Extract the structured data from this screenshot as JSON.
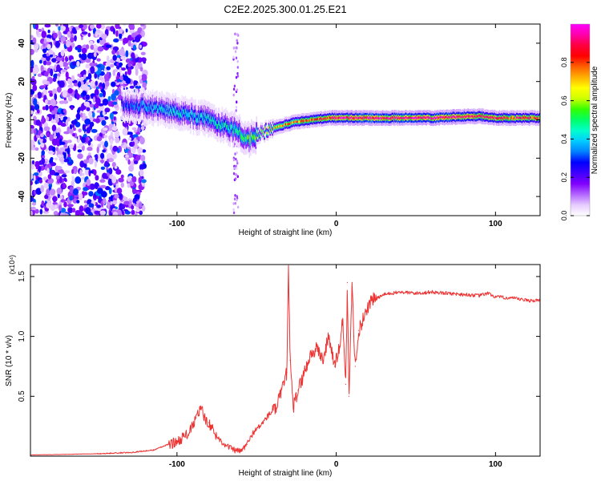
{
  "figure_title": "C2E2.2025.300.01.25.E21",
  "chart_data": [
    {
      "type": "heatmap",
      "title": "C2E2.2025.300.01.25.E21",
      "xlabel": "Height of straight line (km)",
      "ylabel": "Frequency (Hz)",
      "xlim": [
        -192,
        128
      ],
      "ylim": [
        -50,
        50
      ],
      "xticks": [
        -100,
        0,
        100
      ],
      "yticks": [
        -40,
        -20,
        0,
        20,
        40
      ],
      "colorbar": {
        "label": "Normalized spectral amplitude",
        "range": [
          0,
          1
        ],
        "ticks": [
          "0.0",
          "0.2",
          "0.4",
          "0.6",
          "0.8"
        ],
        "colors": [
          "#ffffff",
          "#e6ccff",
          "#b366ff",
          "#8000ff",
          "#4000ff",
          "#0000ff",
          "#0080ff",
          "#00ccff",
          "#00ffcc",
          "#00ff66",
          "#33ff00",
          "#ccff00",
          "#ffff00",
          "#ffb000",
          "#ff6000",
          "#ff0000",
          "#ff0040",
          "#ff00aa",
          "#ff00ff"
        ]
      },
      "ridge": {
        "x": [
          -135,
          -120,
          -100,
          -80,
          -65,
          -55,
          -45,
          -35,
          -25,
          -15,
          -5,
          0,
          20,
          60,
          90,
          100,
          128
        ],
        "y": [
          8,
          7,
          4,
          0,
          -5,
          -10,
          -6,
          -3,
          -1,
          0,
          1,
          1,
          1,
          1,
          2,
          1,
          1
        ],
        "amplitude": [
          0.3,
          0.4,
          0.45,
          0.45,
          0.5,
          0.55,
          0.65,
          0.75,
          0.8,
          0.85,
          0.9,
          0.95,
          1,
          1,
          0.95,
          0.9,
          0.85
        ]
      },
      "noise_region": {
        "x_range": [
          -192,
          -120
        ],
        "y_range": [
          -50,
          50
        ]
      }
    },
    {
      "type": "line",
      "xlabel": "Height of straight line (km)",
      "ylabel": "SNR (10 * v/v)",
      "multiplier": "(x10⁴)",
      "xlim": [
        -192,
        128
      ],
      "ylim": [
        0,
        1.6
      ],
      "xticks": [
        -100,
        0,
        100
      ],
      "yticks": [
        "0.5",
        "1.0",
        "1.5"
      ],
      "series": [
        {
          "name": "SNR",
          "color": "#ee3333",
          "x": [
            -192,
            -170,
            -150,
            -130,
            -115,
            -105,
            -100,
            -92,
            -88,
            -85,
            -82,
            -80,
            -76,
            -72,
            -68,
            -64,
            -60,
            -56,
            -52,
            -48,
            -45,
            -42,
            -38,
            -35,
            -33,
            -31,
            -30,
            -29,
            -27,
            -24,
            -20,
            -16,
            -12,
            -8,
            -5,
            -3,
            -1,
            2,
            4,
            6,
            7,
            8,
            10,
            11,
            12,
            14,
            16,
            18,
            20,
            22,
            26,
            30,
            35,
            40,
            50,
            60,
            70,
            80,
            90,
            95,
            100,
            110,
            120,
            128
          ],
          "y": [
            0.01,
            0.015,
            0.02,
            0.03,
            0.05,
            0.1,
            0.12,
            0.2,
            0.32,
            0.4,
            0.3,
            0.28,
            0.18,
            0.12,
            0.08,
            0.05,
            0.04,
            0.1,
            0.2,
            0.25,
            0.3,
            0.35,
            0.4,
            0.5,
            0.6,
            0.7,
            1.6,
            0.8,
            0.4,
            0.55,
            0.7,
            0.85,
            0.9,
            0.8,
            1.0,
            0.9,
            0.75,
            0.9,
            1.15,
            0.6,
            1.45,
            0.5,
            1.45,
            1.0,
            0.75,
            1.05,
            1.1,
            1.2,
            1.25,
            1.3,
            1.32,
            1.35,
            1.36,
            1.37,
            1.36,
            1.37,
            1.36,
            1.35,
            1.34,
            1.36,
            1.33,
            1.32,
            1.3,
            1.3
          ]
        }
      ]
    }
  ]
}
